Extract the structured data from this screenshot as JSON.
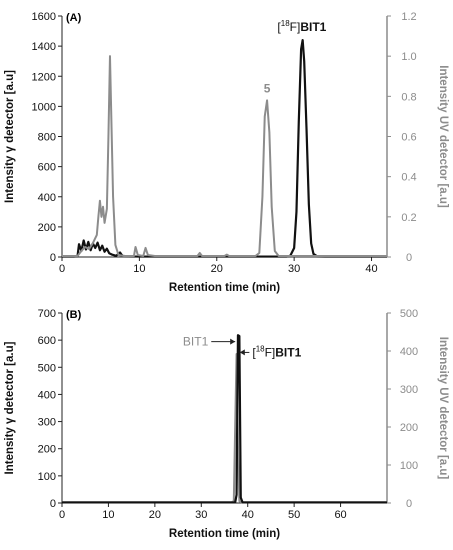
{
  "chart_data": [
    {
      "type": "line",
      "panel_label": "(A)",
      "xlabel": "Retention time (min)",
      "ylabel_left": "Intensity γ detector [a.u]",
      "ylabel_right": "Intensity UV detector [a.u]",
      "xlim": [
        0,
        42
      ],
      "x_ticks": [
        0,
        10,
        20,
        30,
        40
      ],
      "ylim_left": [
        0,
        1600
      ],
      "y_ticks_left": [
        0,
        200,
        400,
        600,
        800,
        1000,
        1200,
        1400,
        1600
      ],
      "ylim_right": [
        0,
        1.2
      ],
      "y_ticks_right": [
        "0",
        "0.2",
        "0.4",
        "0.6",
        "0.8",
        "1.0",
        "1.2"
      ],
      "grid": false,
      "annotations": [
        {
          "text": "5",
          "x": 26.5,
          "y_right": 0.82
        },
        {
          "pre": "[",
          "sup": "18",
          "post": "F]",
          "bold": "BIT1",
          "x": 31,
          "y_left": 1500
        }
      ],
      "series": [
        {
          "axis": "left",
          "color": "#111111",
          "points": [
            [
              0,
              3
            ],
            [
              1.5,
              3
            ],
            [
              2,
              5
            ],
            [
              2.2,
              85
            ],
            [
              2.5,
              40
            ],
            [
              2.8,
              110
            ],
            [
              3.1,
              50
            ],
            [
              3.4,
              100
            ],
            [
              3.7,
              45
            ],
            [
              4,
              90
            ],
            [
              4.3,
              60
            ],
            [
              4.6,
              95
            ],
            [
              4.9,
              45
            ],
            [
              5.2,
              75
            ],
            [
              5.5,
              35
            ],
            [
              5.8,
              55
            ],
            [
              6.1,
              25
            ],
            [
              6.5,
              15
            ],
            [
              7,
              8
            ],
            [
              7.5,
              30
            ],
            [
              7.8,
              8
            ],
            [
              8.5,
              4
            ],
            [
              10,
              3
            ],
            [
              25,
              3
            ],
            [
              29,
              3
            ],
            [
              29.5,
              8
            ],
            [
              30,
              60
            ],
            [
              30.3,
              300
            ],
            [
              30.6,
              900
            ],
            [
              30.9,
              1380
            ],
            [
              31.1,
              1440
            ],
            [
              31.3,
              1300
            ],
            [
              31.6,
              850
            ],
            [
              31.9,
              350
            ],
            [
              32.2,
              90
            ],
            [
              32.5,
              20
            ],
            [
              33,
              4
            ],
            [
              34,
              3
            ],
            [
              42,
              3
            ]
          ]
        },
        {
          "axis": "right",
          "color": "#8c8c8c",
          "points": [
            [
              0,
              0.005
            ],
            [
              2,
              0.005
            ],
            [
              2.5,
              0.03
            ],
            [
              3,
              0.05
            ],
            [
              3.5,
              0.04
            ],
            [
              4,
              0.07
            ],
            [
              4.5,
              0.11
            ],
            [
              4.7,
              0.2
            ],
            [
              4.9,
              0.28
            ],
            [
              5.1,
              0.2
            ],
            [
              5.3,
              0.25
            ],
            [
              5.5,
              0.17
            ],
            [
              5.8,
              0.24
            ],
            [
              6,
              0.6
            ],
            [
              6.2,
              1.0
            ],
            [
              6.4,
              0.65
            ],
            [
              6.6,
              0.3
            ],
            [
              6.9,
              0.06
            ],
            [
              7.3,
              0.01
            ],
            [
              8,
              0.005
            ],
            [
              9.3,
              0.005
            ],
            [
              9.5,
              0.05
            ],
            [
              9.8,
              0.01
            ],
            [
              10.5,
              0.005
            ],
            [
              10.8,
              0.045
            ],
            [
              11.1,
              0.01
            ],
            [
              12,
              0.005
            ],
            [
              17.5,
              0.005
            ],
            [
              17.8,
              0.02
            ],
            [
              18.1,
              0.005
            ],
            [
              21,
              0.005
            ],
            [
              21.3,
              0.012
            ],
            [
              21.6,
              0.005
            ],
            [
              25,
              0.005
            ],
            [
              25.5,
              0.02
            ],
            [
              25.9,
              0.3
            ],
            [
              26.2,
              0.7
            ],
            [
              26.5,
              0.78
            ],
            [
              26.8,
              0.62
            ],
            [
              27.1,
              0.25
            ],
            [
              27.5,
              0.03
            ],
            [
              28,
              0.005
            ],
            [
              42,
              0.005
            ]
          ]
        }
      ]
    },
    {
      "type": "line",
      "panel_label": "(B)",
      "xlabel": "Retention time (min)",
      "ylabel_left": "Intensity γ detector [a.u]",
      "ylabel_right": "Intensity UV detector [a.u]",
      "xlim": [
        0,
        70
      ],
      "x_ticks": [
        0,
        10,
        20,
        30,
        40,
        50,
        60
      ],
      "ylim_left": [
        0,
        700
      ],
      "y_ticks_left": [
        0,
        100,
        200,
        300,
        400,
        500,
        600,
        700
      ],
      "ylim_right": [
        0,
        500
      ],
      "y_ticks_right": [
        "0",
        "100",
        "200",
        "300",
        "400",
        "500"
      ],
      "grid": false,
      "annotations": [
        {
          "text": "BIT1",
          "x": 31.5,
          "y_left": 580,
          "arrow_to": [
            37.3,
            580
          ]
        },
        {
          "pre": "[",
          "sup": "18",
          "post": "F]",
          "bold": "BIT1",
          "x": 41,
          "y_left": 540,
          "arrow_to": [
            38.3,
            540
          ]
        }
      ],
      "series": [
        {
          "axis": "right",
          "color": "#8c8c8c",
          "points": [
            [
              0,
              2
            ],
            [
              36.5,
              2
            ],
            [
              37,
              5
            ],
            [
              37.3,
              200
            ],
            [
              37.6,
              392
            ],
            [
              37.9,
              150
            ],
            [
              38.2,
              5
            ],
            [
              38.6,
              2
            ],
            [
              70,
              2
            ]
          ]
        },
        {
          "axis": "left",
          "color": "#111111",
          "points": [
            [
              0,
              2
            ],
            [
              37.3,
              2
            ],
            [
              37.6,
              30
            ],
            [
              37.9,
              618
            ],
            [
              38.2,
              615
            ],
            [
              38.5,
              20
            ],
            [
              38.9,
              2
            ],
            [
              70,
              2
            ]
          ]
        }
      ]
    }
  ]
}
